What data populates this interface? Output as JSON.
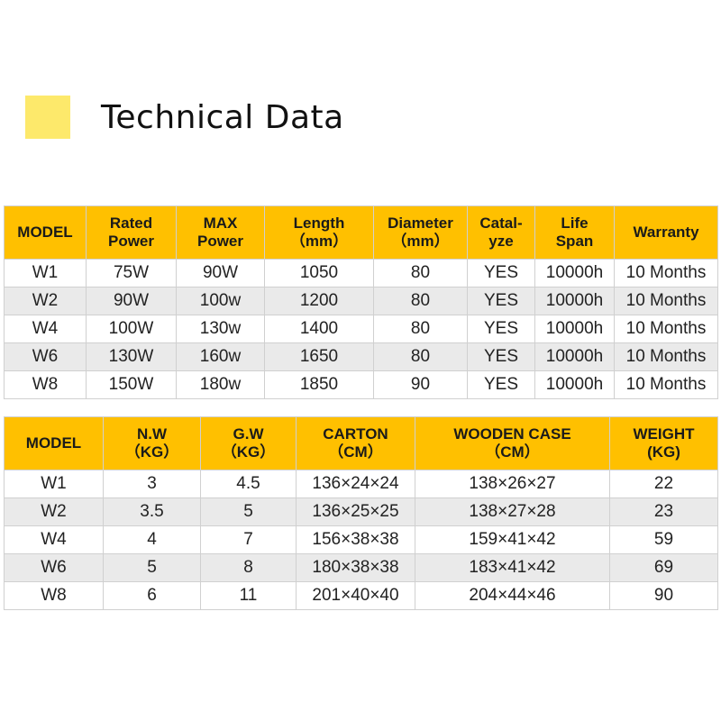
{
  "title": "Technical Data",
  "colors": {
    "accent": "#ffc000",
    "swatch": "#fde96b",
    "alt_row": "#eaeaea"
  },
  "specs": {
    "headers": [
      [
        "MODEL"
      ],
      [
        "Rated",
        "Power"
      ],
      [
        "MAX",
        "Power"
      ],
      [
        "Length",
        "（mm）"
      ],
      [
        "Diameter",
        "（mm）"
      ],
      [
        "Catal-",
        "yze"
      ],
      [
        "Life",
        "Span"
      ],
      [
        "Warranty"
      ]
    ],
    "rows": [
      [
        "W1",
        "75W",
        "90W",
        "1050",
        "80",
        "YES",
        "10000h",
        "10 Months"
      ],
      [
        "W2",
        "90W",
        "100w",
        "1200",
        "80",
        "YES",
        "10000h",
        "10 Months"
      ],
      [
        "W4",
        "100W",
        "130w",
        "1400",
        "80",
        "YES",
        "10000h",
        "10 Months"
      ],
      [
        "W6",
        "130W",
        "160w",
        "1650",
        "80",
        "YES",
        "10000h",
        "10 Months"
      ],
      [
        "W8",
        "150W",
        "180w",
        "1850",
        "90",
        "YES",
        "10000h",
        "10 Months"
      ]
    ]
  },
  "packing": {
    "headers": [
      [
        "MODEL"
      ],
      [
        "N.W",
        "（KG）"
      ],
      [
        "G.W",
        "（KG）"
      ],
      [
        "CARTON",
        "（CM）"
      ],
      [
        "WOODEN CASE",
        "（CM）"
      ],
      [
        "WEIGHT",
        "(KG)"
      ]
    ],
    "rows": [
      [
        "W1",
        "3",
        "4.5",
        "136×24×24",
        "138×26×27",
        "22"
      ],
      [
        "W2",
        "3.5",
        "5",
        "136×25×25",
        "138×27×28",
        "23"
      ],
      [
        "W4",
        "4",
        "7",
        "156×38×38",
        "159×41×42",
        "59"
      ],
      [
        "W6",
        "5",
        "8",
        "180×38×38",
        "183×41×42",
        "69"
      ],
      [
        "W8",
        "6",
        "11",
        "201×40×40",
        "204×44×46",
        "90"
      ]
    ]
  }
}
